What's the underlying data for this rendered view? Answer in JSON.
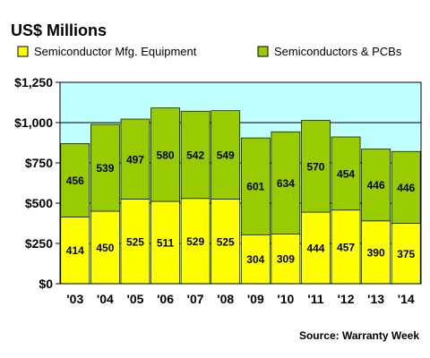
{
  "chart_data": {
    "type": "bar",
    "stacked": true,
    "title": "US$ Millions",
    "categories": [
      "'03",
      "'04",
      "'05",
      "'06",
      "'07",
      "'08",
      "'09",
      "'10",
      "'11",
      "'12",
      "'13",
      "'14"
    ],
    "series": [
      {
        "name": "Semiconductor Mfg. Equipment",
        "color": "#ffff00",
        "values": [
          414,
          450,
          525,
          511,
          529,
          525,
          304,
          309,
          444,
          457,
          390,
          375
        ]
      },
      {
        "name": "Semiconductors & PCBs",
        "color": "#99cc00",
        "values": [
          456,
          539,
          497,
          580,
          542,
          549,
          601,
          634,
          570,
          454,
          446,
          446
        ]
      }
    ],
    "ylim": [
      0,
      1250
    ],
    "yticks": [
      "$0",
      "$250",
      "$500",
      "$750",
      "$1,000",
      "$1,250"
    ],
    "grid": true,
    "legend": "top",
    "plot_background": "#c0ffff",
    "source": "Source: Warranty Week"
  }
}
